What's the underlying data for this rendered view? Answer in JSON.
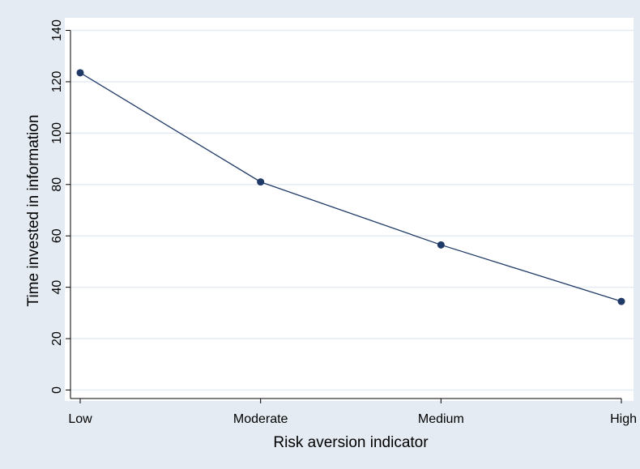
{
  "chart_data": {
    "type": "line",
    "title": "",
    "xlabel": "Risk aversion indicator",
    "ylabel": "Time invested in information",
    "categories": [
      "Low",
      "Moderate",
      "Medium",
      "High"
    ],
    "series": [
      {
        "name": "",
        "values": [
          123.5,
          81,
          56.5,
          34.5
        ]
      }
    ],
    "yticks": [
      0,
      20,
      40,
      60,
      80,
      100,
      120,
      140
    ],
    "ylim": [
      0,
      140
    ],
    "grid": true,
    "legend": "none",
    "colors": {
      "background": "#e4ebf3",
      "plot_background": "#ffffff",
      "line": "#1f3a66",
      "marker": "#1f3a66",
      "grid": "#e4ebf3"
    }
  }
}
